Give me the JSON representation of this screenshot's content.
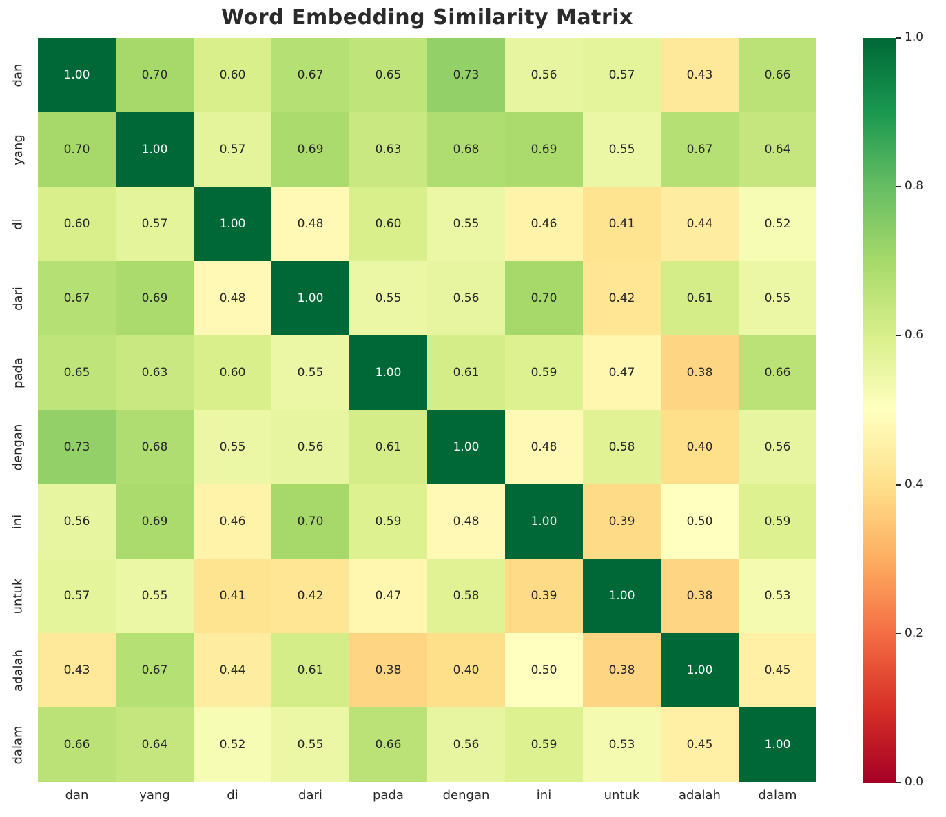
{
  "title": "Word Embedding Similarity Matrix",
  "chart_data": {
    "type": "heatmap",
    "title": "Word Embedding Similarity Matrix",
    "x_categories": [
      "dan",
      "yang",
      "di",
      "dari",
      "pada",
      "dengan",
      "ini",
      "untuk",
      "adalah",
      "dalam"
    ],
    "y_categories": [
      "dan",
      "yang",
      "di",
      "dari",
      "pada",
      "dengan",
      "ini",
      "untuk",
      "adalah",
      "dalam"
    ],
    "matrix": [
      [
        1.0,
        0.7,
        0.6,
        0.67,
        0.65,
        0.73,
        0.56,
        0.57,
        0.43,
        0.66
      ],
      [
        0.7,
        1.0,
        0.57,
        0.69,
        0.63,
        0.68,
        0.69,
        0.55,
        0.67,
        0.64
      ],
      [
        0.6,
        0.57,
        1.0,
        0.48,
        0.6,
        0.55,
        0.46,
        0.41,
        0.44,
        0.52
      ],
      [
        0.67,
        0.69,
        0.48,
        1.0,
        0.55,
        0.56,
        0.7,
        0.42,
        0.61,
        0.55
      ],
      [
        0.65,
        0.63,
        0.6,
        0.55,
        1.0,
        0.61,
        0.59,
        0.47,
        0.38,
        0.66
      ],
      [
        0.73,
        0.68,
        0.55,
        0.56,
        0.61,
        1.0,
        0.48,
        0.58,
        0.4,
        0.56
      ],
      [
        0.56,
        0.69,
        0.46,
        0.7,
        0.59,
        0.48,
        1.0,
        0.39,
        0.5,
        0.59
      ],
      [
        0.57,
        0.55,
        0.41,
        0.42,
        0.47,
        0.58,
        0.39,
        1.0,
        0.38,
        0.53
      ],
      [
        0.43,
        0.67,
        0.44,
        0.61,
        0.38,
        0.4,
        0.5,
        0.38,
        1.0,
        0.45
      ],
      [
        0.66,
        0.64,
        0.52,
        0.55,
        0.66,
        0.56,
        0.59,
        0.53,
        0.45,
        1.0
      ]
    ],
    "vmin": 0.0,
    "vmax": 1.0,
    "colorbar_ticks": [
      1.0,
      0.8,
      0.6,
      0.4,
      0.2,
      0.0
    ],
    "colormap": {
      "name": "RdYlGn",
      "stops": [
        {
          "t": 0.0,
          "color": "#a50026"
        },
        {
          "t": 0.1,
          "color": "#d73027"
        },
        {
          "t": 0.2,
          "color": "#f46d43"
        },
        {
          "t": 0.3,
          "color": "#fdae61"
        },
        {
          "t": 0.4,
          "color": "#fee08b"
        },
        {
          "t": 0.5,
          "color": "#ffffbf"
        },
        {
          "t": 0.6,
          "color": "#d9ef8b"
        },
        {
          "t": 0.7,
          "color": "#a6d96a"
        },
        {
          "t": 0.8,
          "color": "#66bd63"
        },
        {
          "t": 0.9,
          "color": "#1a9850"
        },
        {
          "t": 1.0,
          "color": "#006837"
        }
      ]
    },
    "annotation_text_colors": {
      "dark": "#262626",
      "light": "#ffffff"
    },
    "legend_position": "right",
    "grid": false
  }
}
